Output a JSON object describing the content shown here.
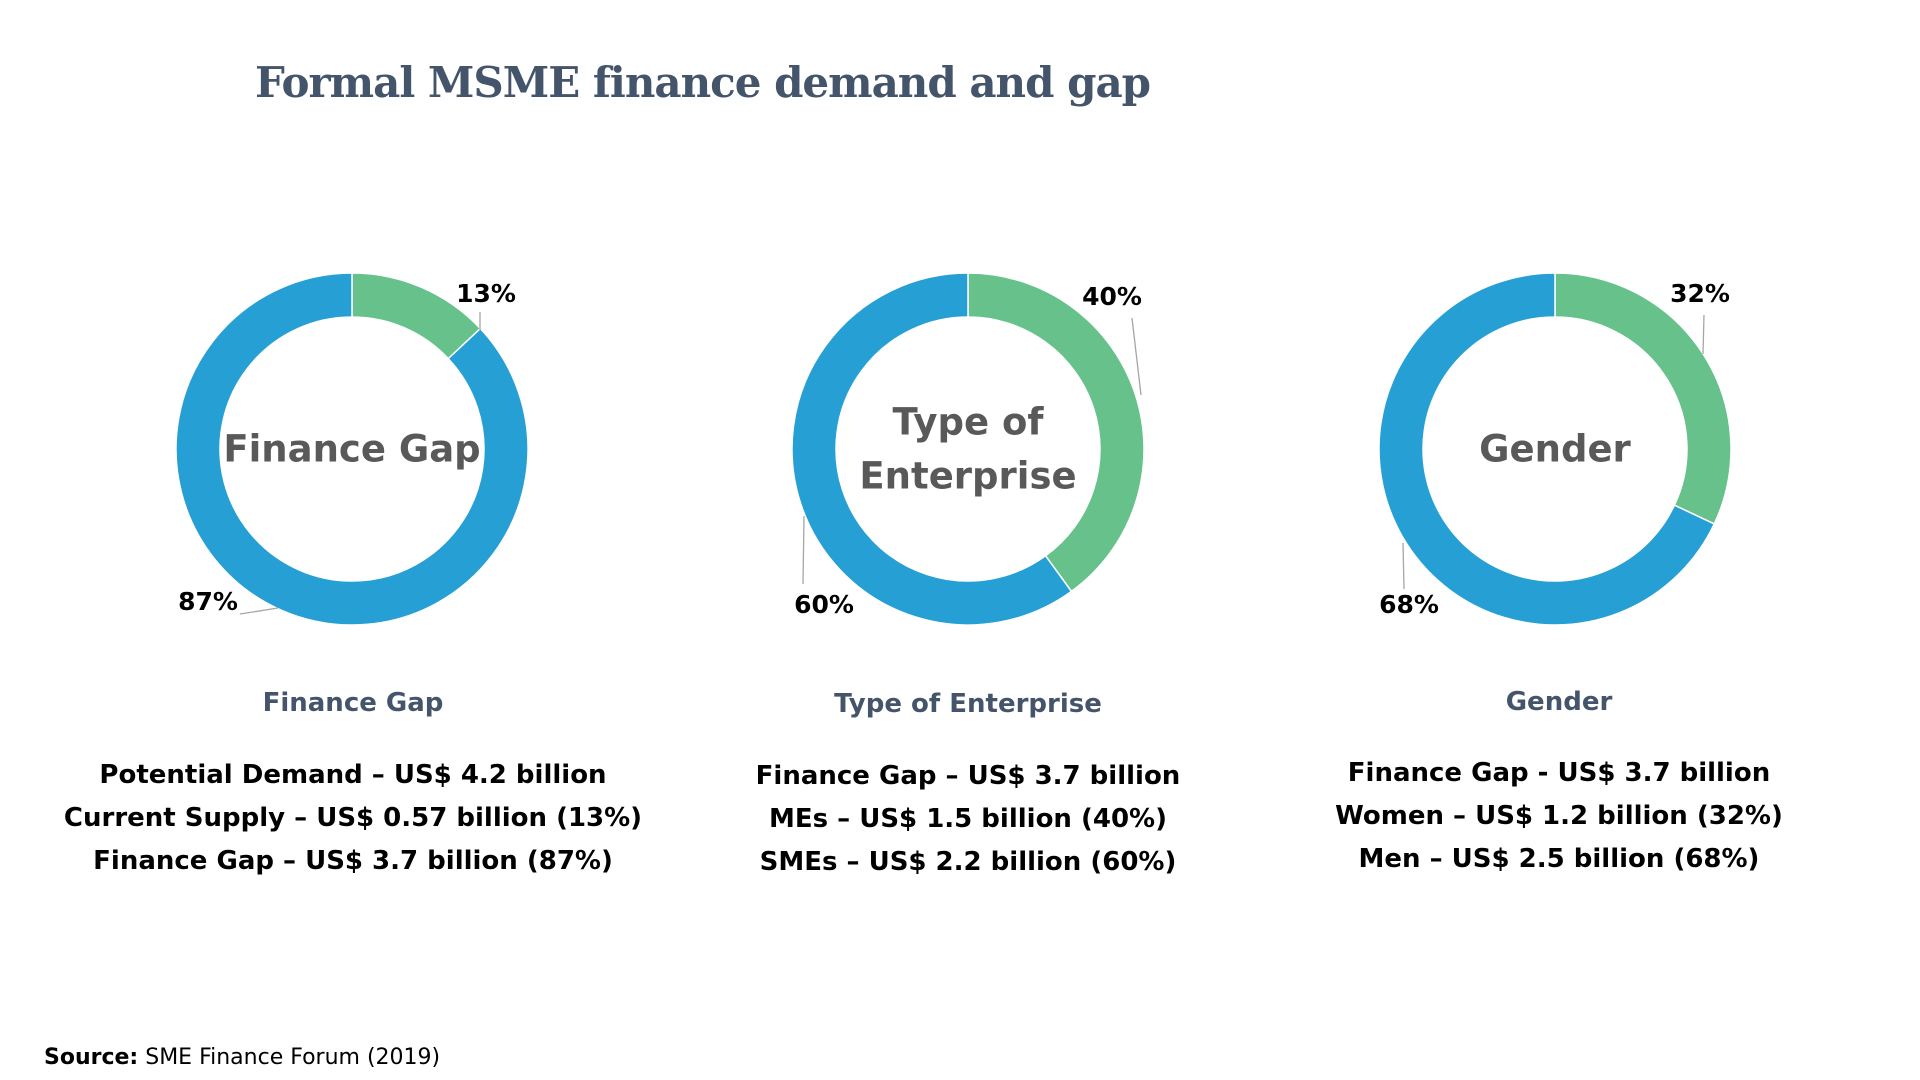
{
  "title": "Formal MSME finance demand and gap",
  "colors": {
    "blue": "#269fd4",
    "green": "#66c18a",
    "title": "#44546a"
  },
  "chart_data": [
    {
      "type": "pie",
      "center_label": [
        "Finance Gap"
      ],
      "caption": "Finance Gap",
      "slices": [
        {
          "label": "13%",
          "value": 13,
          "color": "#66c18a"
        },
        {
          "label": "87%",
          "value": 87,
          "color": "#269fd4"
        }
      ],
      "details": [
        "Potential Demand – US$ 4.2 billion",
        "Current Supply – US$ 0.57 billion (13%)",
        "Finance Gap – US$ 3.7 billion (87%)"
      ]
    },
    {
      "type": "pie",
      "center_label": [
        "Type of",
        "Enterprise"
      ],
      "caption": "Type of Enterprise",
      "slices": [
        {
          "label": "40%",
          "value": 40,
          "color": "#66c18a"
        },
        {
          "label": "60%",
          "value": 60,
          "color": "#269fd4"
        }
      ],
      "details": [
        "Finance Gap – US$ 3.7 billion",
        "MEs – US$ 1.5 billion (40%)",
        "SMEs – US$ 2.2 billion (60%)"
      ]
    },
    {
      "type": "pie",
      "center_label": [
        "Gender"
      ],
      "caption": "Gender",
      "slices": [
        {
          "label": "32%",
          "value": 32,
          "color": "#66c18a"
        },
        {
          "label": "68%",
          "value": 68,
          "color": "#269fd4"
        }
      ],
      "details": [
        "Finance Gap - US$ 3.7 billion",
        "Women – US$ 1.2 billion (32%)",
        "Men – US$ 2.5 billion (68%)"
      ]
    }
  ],
  "source": {
    "label": "Source:",
    "text": " SME Finance Forum (2019)"
  }
}
